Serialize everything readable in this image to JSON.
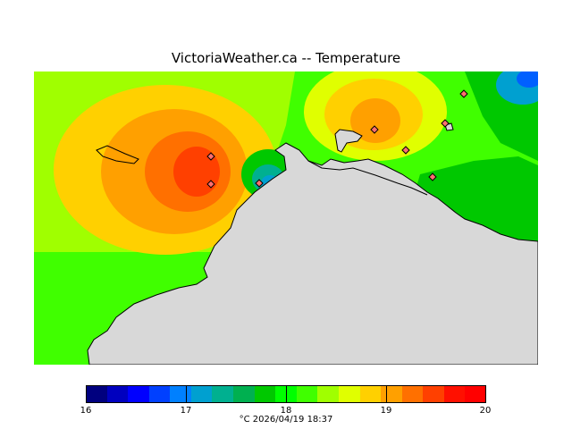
{
  "title": "VictoriaWeather.ca  --  Temperature",
  "caption": "°C  2026/04/19  18:37",
  "legend": {
    "tick_labels": [
      "16",
      "17",
      "18",
      "19",
      "20"
    ],
    "colors": [
      "#00007f",
      "#0000bf",
      "#0000ff",
      "#0040ff",
      "#0080ff",
      "#00a0d0",
      "#00b090",
      "#00b050",
      "#00c800",
      "#00ff00",
      "#40ff00",
      "#a0ff00",
      "#e0ff00",
      "#ffd000",
      "#ffa000",
      "#ff7000",
      "#ff4000",
      "#ff1000",
      "#ff0000"
    ]
  },
  "colors": {
    "land": "#d8d8d8",
    "green": "#00c800",
    "bright_green": "#40ff00",
    "lime": "#a0ff00",
    "yellow": "#ffd000",
    "orange": "#ffa000",
    "dark_orange": "#ff7000",
    "red_orange": "#ff4000",
    "cyan_blue": "#00a0d0",
    "blue": "#0060ff"
  }
}
